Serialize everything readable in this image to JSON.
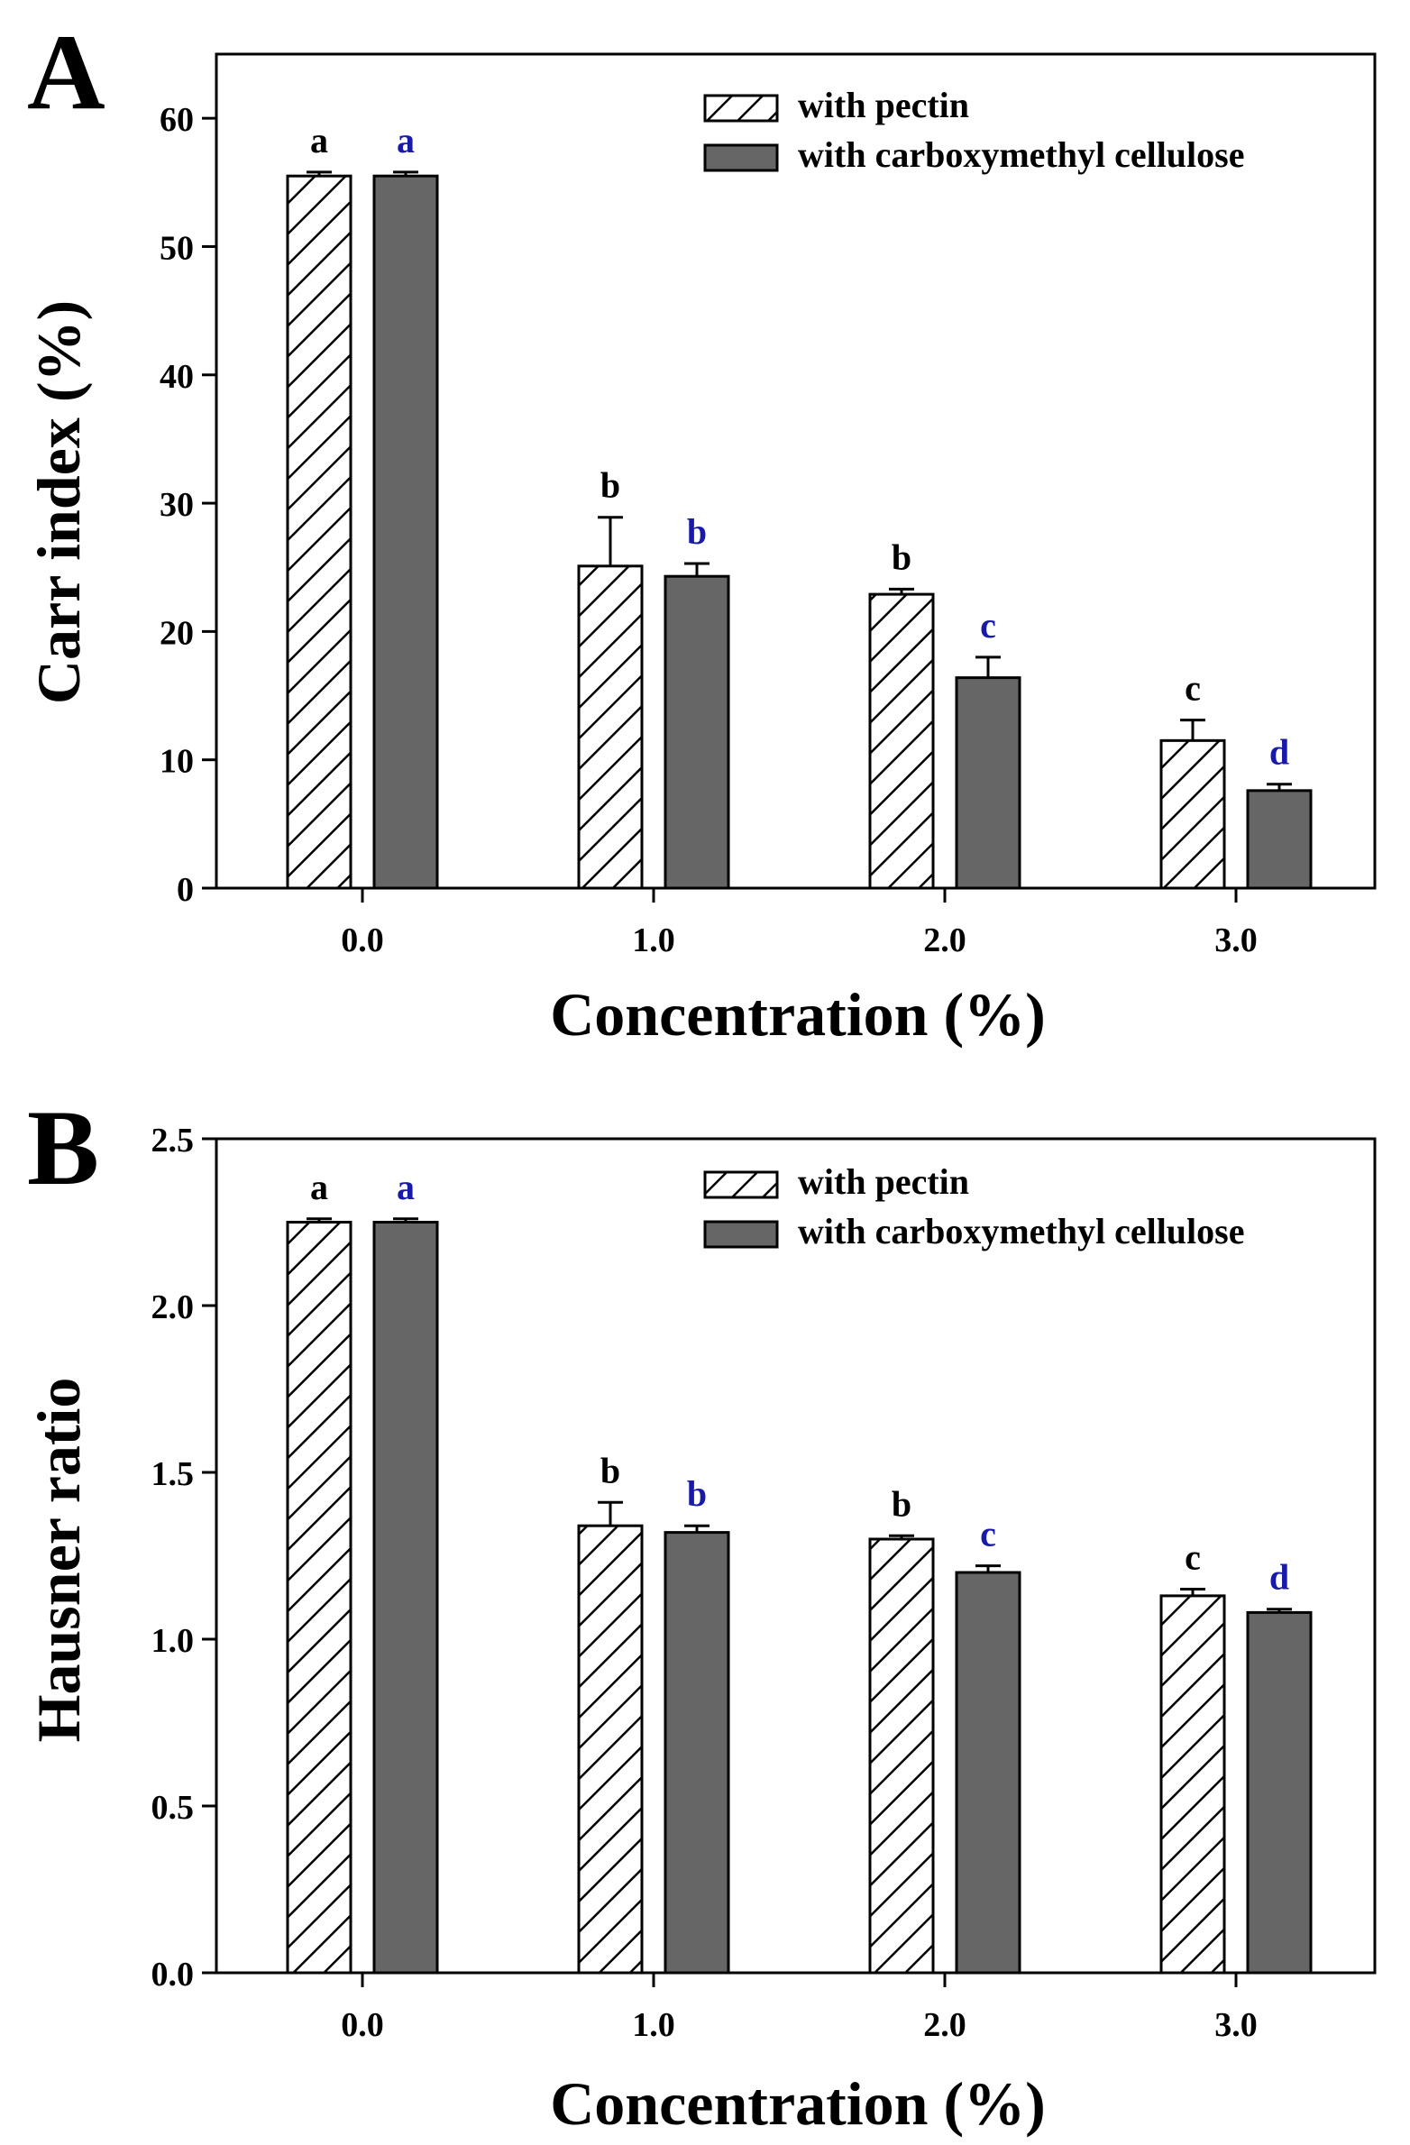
{
  "colors": {
    "axis": "#000000",
    "pectin_fill": "#ffffff",
    "pectin_hatch": "#000000",
    "cmc_fill": "#666666",
    "letter_pectin": "#000000",
    "letter_cmc": "#1a1aaa"
  },
  "chart_data": [
    {
      "type": "bar",
      "panel_label": "A",
      "title": "",
      "xlabel": "Concentration (%)",
      "ylabel": "Carr index (%)",
      "categories": [
        "0.0",
        "1.0",
        "2.0",
        "3.0"
      ],
      "ylim": [
        0,
        65
      ],
      "yticks": [
        0,
        10,
        20,
        30,
        40,
        50,
        60
      ],
      "ytick_labels": [
        "0",
        "10",
        "20",
        "30",
        "40",
        "50",
        "60"
      ],
      "legend_position": "top-right",
      "series": [
        {
          "name": "with pectin",
          "values": [
            55.5,
            25.1,
            22.9,
            11.5
          ],
          "errors": [
            0.3,
            3.8,
            0.4,
            1.6
          ],
          "letters": [
            "a",
            "b",
            "b",
            "c"
          ]
        },
        {
          "name": "with carboxymethyl cellulose",
          "values": [
            55.5,
            24.3,
            16.4,
            7.6
          ],
          "errors": [
            0.3,
            1.0,
            1.6,
            0.5
          ],
          "letters": [
            "a",
            "b",
            "c",
            "d"
          ]
        }
      ]
    },
    {
      "type": "bar",
      "panel_label": "B",
      "title": "",
      "xlabel": "Concentration (%)",
      "ylabel": "Hausner ratio",
      "categories": [
        "0.0",
        "1.0",
        "2.0",
        "3.0"
      ],
      "ylim": [
        0,
        2.5
      ],
      "yticks": [
        0,
        0.5,
        1.0,
        1.5,
        2.0,
        2.5
      ],
      "ytick_labels": [
        "0.0",
        "0.5",
        "1.0",
        "1.5",
        "2.0",
        "2.5"
      ],
      "legend_position": "top-right",
      "series": [
        {
          "name": "with pectin",
          "values": [
            2.25,
            1.34,
            1.3,
            1.13
          ],
          "errors": [
            0.01,
            0.07,
            0.01,
            0.02
          ],
          "letters": [
            "a",
            "b",
            "b",
            "c"
          ]
        },
        {
          "name": "with carboxymethyl cellulose",
          "values": [
            2.25,
            1.32,
            1.2,
            1.08
          ],
          "errors": [
            0.01,
            0.02,
            0.02,
            0.01
          ],
          "letters": [
            "a",
            "b",
            "c",
            "d"
          ]
        }
      ]
    }
  ]
}
